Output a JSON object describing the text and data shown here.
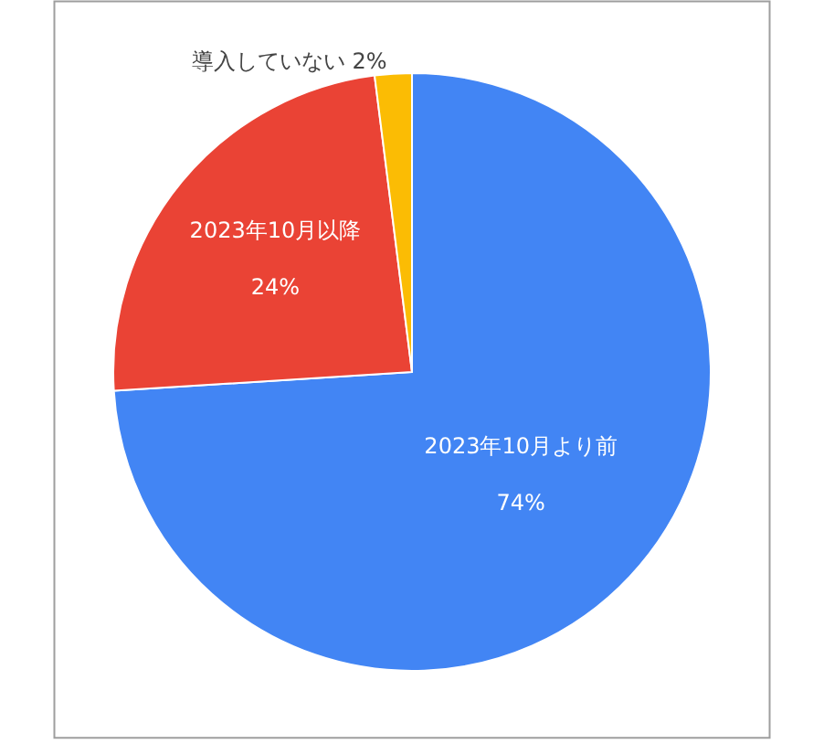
{
  "chart_data": {
    "type": "pie",
    "categories": [
      "2023年10月より前",
      "2023年10月以降",
      "導入していない"
    ],
    "values": [
      74,
      24,
      2
    ],
    "value_labels": [
      "74%",
      "24%",
      "2%"
    ],
    "colors": [
      "#4285f4",
      "#ea4335",
      "#fbbc04"
    ],
    "legend": false
  }
}
